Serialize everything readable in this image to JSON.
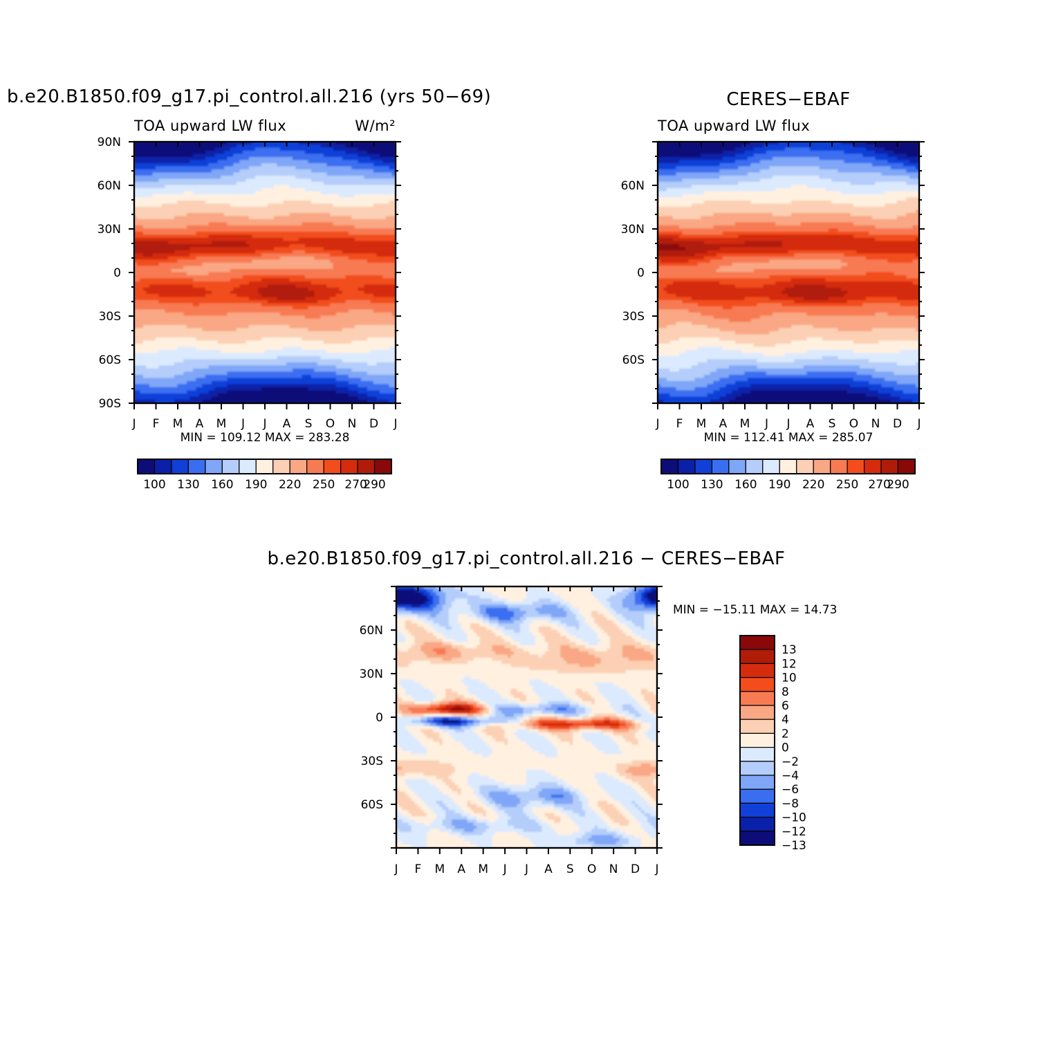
{
  "chart_data": [
    {
      "type": "heatmap",
      "id": "model",
      "title": "b.e20.B1850.f09_g17.pi_control.all.216 (yrs 50−69)",
      "subtitle_left": "TOA upward LW flux",
      "subtitle_right": "W/m²",
      "x_ticks": [
        "J",
        "F",
        "M",
        "A",
        "M",
        "J",
        "J",
        "A",
        "S",
        "O",
        "N",
        "D",
        "J"
      ],
      "y_ticks": [
        "90N",
        "60N",
        "30N",
        "0",
        "30S",
        "60S",
        "90S"
      ],
      "stats": "MIN = 109.12 MAX = 283.28",
      "min": 109.12,
      "max": 283.28,
      "colorbar_labels": [
        "100",
        "130",
        "160",
        "190",
        "220",
        "250",
        "270",
        "290"
      ],
      "colors": [
        "#0d0d7a",
        "#0b20a8",
        "#1040d8",
        "#3a6ef0",
        "#7fa6f7",
        "#b4cdfa",
        "#dceaff",
        "#fff0e0",
        "#fcd0b4",
        "#f9a784",
        "#f87a52",
        "#f24d1a",
        "#d42c0c",
        "#b01c08",
        "#8a0808"
      ],
      "levels": [
        100,
        115,
        130,
        145,
        160,
        175,
        190,
        205,
        220,
        235,
        250,
        260,
        270,
        280,
        290
      ]
    },
    {
      "type": "heatmap",
      "id": "obs",
      "title": "CERES−EBAF",
      "subtitle_left": "TOA upward LW flux",
      "x_ticks": [
        "J",
        "F",
        "M",
        "A",
        "M",
        "J",
        "J",
        "A",
        "S",
        "O",
        "N",
        "D",
        "J"
      ],
      "y_ticks": [
        "60N",
        "30N",
        "0",
        "30S",
        "60S"
      ],
      "stats": "MIN = 112.41 MAX = 285.07",
      "min": 112.41,
      "max": 285.07,
      "colorbar_labels": [
        "100",
        "130",
        "160",
        "190",
        "220",
        "250",
        "270",
        "290"
      ]
    },
    {
      "type": "heatmap",
      "id": "diff",
      "title": "b.e20.B1850.f09_g17.pi_control.all.216 − CERES−EBAF",
      "x_ticks": [
        "J",
        "F",
        "M",
        "A",
        "M",
        "J",
        "J",
        "A",
        "S",
        "O",
        "N",
        "D",
        "J"
      ],
      "y_ticks": [
        "60N",
        "30N",
        "0",
        "30S",
        "60S"
      ],
      "stats": "MIN = −15.11 MAX = 14.73",
      "min": -15.11,
      "max": 14.73,
      "colorbar_labels": [
        "13",
        "12",
        "10",
        "8",
        "6",
        "4",
        "2",
        "0",
        "−2",
        "−4",
        "−6",
        "−8",
        "−10",
        "−12",
        "−13"
      ],
      "colors": [
        "#8a0808",
        "#b01c08",
        "#d42c0c",
        "#f24d1a",
        "#f87a52",
        "#f9a784",
        "#fcd0b4",
        "#fff0e0",
        "#dceaff",
        "#b4cdfa",
        "#7fa6f7",
        "#3a6ef0",
        "#1040d8",
        "#0b20a8",
        "#0d0d7a"
      ]
    }
  ]
}
